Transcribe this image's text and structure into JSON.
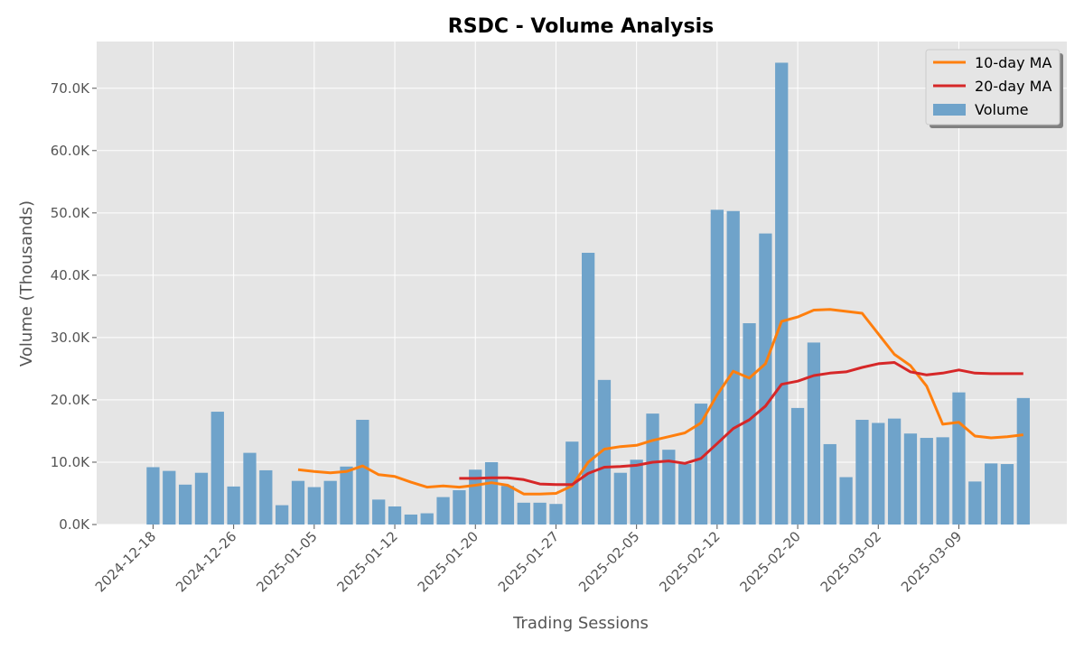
{
  "chart_data": {
    "type": "bar",
    "title": "RSDC - Volume Analysis",
    "xlabel": "Trading Sessions",
    "ylabel": "Volume (Thousands)",
    "ylim": [
      0,
      77500
    ],
    "y_ticks": [
      0,
      10000,
      20000,
      30000,
      40000,
      50000,
      60000,
      70000
    ],
    "y_tick_labels": [
      "0.0K",
      "10.0K",
      "20.0K",
      "30.0K",
      "40.0K",
      "50.0K",
      "60.0K",
      "70.0K"
    ],
    "x_tick_labels": [
      "2024-12-18",
      "2024-12-26",
      "2025-01-05",
      "2025-01-12",
      "2025-01-20",
      "2025-01-27",
      "2025-02-05",
      "2025-02-12",
      "2025-02-20",
      "2025-03-02",
      "2025-03-09"
    ],
    "x_tick_positions": [
      0.5,
      5.5,
      10.5,
      15.5,
      20.5,
      25.5,
      30.5,
      35.5,
      40.5,
      45.5,
      50.5
    ],
    "grid": true,
    "legend_position": "top-right",
    "series": [
      {
        "name": "Volume",
        "kind": "bar",
        "color": "#6fa3ca",
        "values": [
          9200,
          8600,
          6400,
          8300,
          18100,
          6100,
          11500,
          8700,
          3100,
          7000,
          6000,
          7000,
          9300,
          16800,
          4000,
          2900,
          1600,
          1800,
          4400,
          5500,
          8800,
          10000,
          6200,
          3500,
          3500,
          3300,
          13300,
          43600,
          23200,
          8300,
          10400,
          17800,
          12000,
          9700,
          19400,
          50500,
          50300,
          32300,
          46700,
          74100,
          18700,
          29200,
          12900,
          7600,
          16800,
          16300,
          17000,
          14600,
          13900,
          14000,
          21200,
          6900,
          9800,
          9700,
          20300
        ]
      },
      {
        "name": "10-day MA",
        "kind": "line",
        "color": "#ff7f0e",
        "values": [
          null,
          null,
          null,
          null,
          null,
          null,
          null,
          null,
          null,
          8800,
          8500,
          8300,
          8500,
          9400,
          8000,
          7700,
          6800,
          6000,
          6200,
          6000,
          6300,
          6700,
          6300,
          4900,
          4900,
          5000,
          6200,
          10000,
          12100,
          12500,
          12700,
          13500,
          14100,
          14700,
          16300,
          20800,
          24600,
          23500,
          25800,
          32600,
          33300,
          34400,
          34500,
          34200,
          33900,
          30600,
          27300,
          25500,
          22200,
          16100,
          16400,
          14200,
          13900,
          14100,
          14400
        ]
      },
      {
        "name": "20-day MA",
        "kind": "line",
        "color": "#d62728",
        "values": [
          null,
          null,
          null,
          null,
          null,
          null,
          null,
          null,
          null,
          null,
          null,
          null,
          null,
          null,
          null,
          null,
          null,
          null,
          null,
          7400,
          7400,
          7500,
          7500,
          7200,
          6500,
          6400,
          6400,
          8200,
          9200,
          9300,
          9500,
          10000,
          10200,
          9800,
          10600,
          13000,
          15400,
          16800,
          19000,
          22500,
          23000,
          23900,
          24300,
          24500,
          25200,
          25800,
          26000,
          24500,
          24000,
          24300,
          24800,
          24300,
          24200,
          24200,
          24200
        ]
      }
    ]
  }
}
